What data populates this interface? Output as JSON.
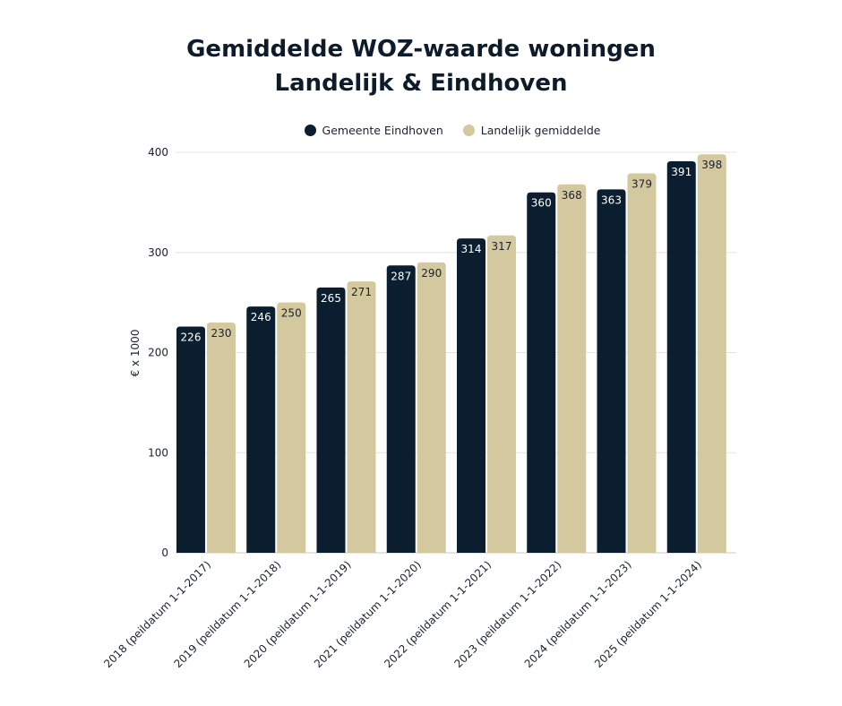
{
  "chart_data": {
    "type": "bar",
    "title": "Gemiddelde WOZ-waarde woningen",
    "subtitle": "Landelijk & Eindhoven",
    "ylabel": "€ x 1000",
    "xlabel": "",
    "ylim": [
      0,
      400
    ],
    "yticks": [
      0,
      100,
      200,
      300,
      400
    ],
    "grid": true,
    "legend_position": "top",
    "categories": [
      "2018 (peildatum 1-1-2017)",
      "2019 (peildatum 1-1-2018)",
      "2020 (peildatum 1-1-2019)",
      "2021 (peildatum 1-1-2020)",
      "2022 (peildatum 1-1-2021)",
      "2023 (peildatum 1-1-2022)",
      "2024 (peildatum 1-1-2023)",
      "2025 (peildatum 1-1-2024)"
    ],
    "series": [
      {
        "name": "Gemeente Eindhoven",
        "color": "#0a1e30",
        "label_color": "#ffffff",
        "values": [
          226,
          246,
          265,
          287,
          314,
          360,
          363,
          391
        ]
      },
      {
        "name": "Landelijk gemiddelde",
        "color": "#d4c89f",
        "label_color": "#1a2230",
        "values": [
          230,
          250,
          271,
          290,
          317,
          368,
          379,
          398
        ]
      }
    ]
  }
}
